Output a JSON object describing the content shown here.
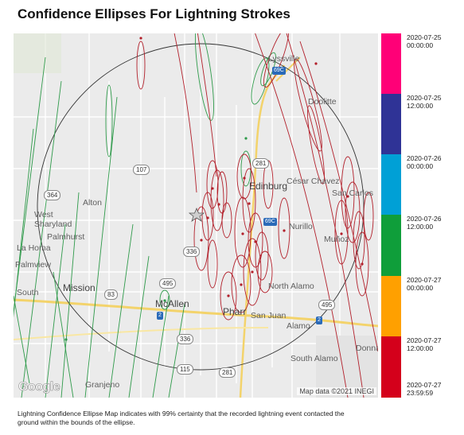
{
  "title": "Confidence Ellipses For Lightning Strokes",
  "map": {
    "places": {
      "lyssville": "Lyssville",
      "doolittle": "Doolitte",
      "edinburg": "Edinburg",
      "cesar_chavez": "César Chavez",
      "san_carlos": "San Carlos",
      "alton": "Alton",
      "west_sharyland": "West\nSharyland",
      "palmhurst": "Palmhurst",
      "la_homa": "La Homa",
      "palmview": "Palmview",
      "palmview_south": "South",
      "nurillo": "Nurillo",
      "munoz": "Muñoz",
      "mission": "Mission",
      "mcallen": "McAllen",
      "pharr": "Pharr",
      "san_juan": "San Juan",
      "north_alamo": "North Alamo",
      "alamo": "Alamo",
      "donna": "Donna",
      "south_alamo": "South Alamo",
      "granjeno": "Granjeno"
    },
    "shields": [
      "107",
      "364",
      "336",
      "495",
      "83",
      "2",
      "281",
      "69C",
      "107",
      "495",
      "2",
      "336",
      "115",
      "281",
      "69C"
    ],
    "google_logo": "Google",
    "attribution": "Map data ©2021 INEGI"
  },
  "legend": {
    "colors": [
      "#ff0077",
      "#2f3396",
      "#00a0d6",
      "#0f9e3a",
      "#ffa000",
      "#d4001b"
    ],
    "labels": [
      "2020-07-25\n00:00:00",
      "2020-07-25\n12:00:00",
      "2020-07-26\n00:00:00",
      "2020-07-26\n12:00:00",
      "2020-07-27\n00:00:00",
      "2020-07-27\n12:00:00",
      "2020-07-27\n23:59:59"
    ]
  },
  "caption": "Lightning Confidence Ellipse Map indicates with 99% certainty that the recorded lightning event contacted the ground within the bounds of the ellipse."
}
